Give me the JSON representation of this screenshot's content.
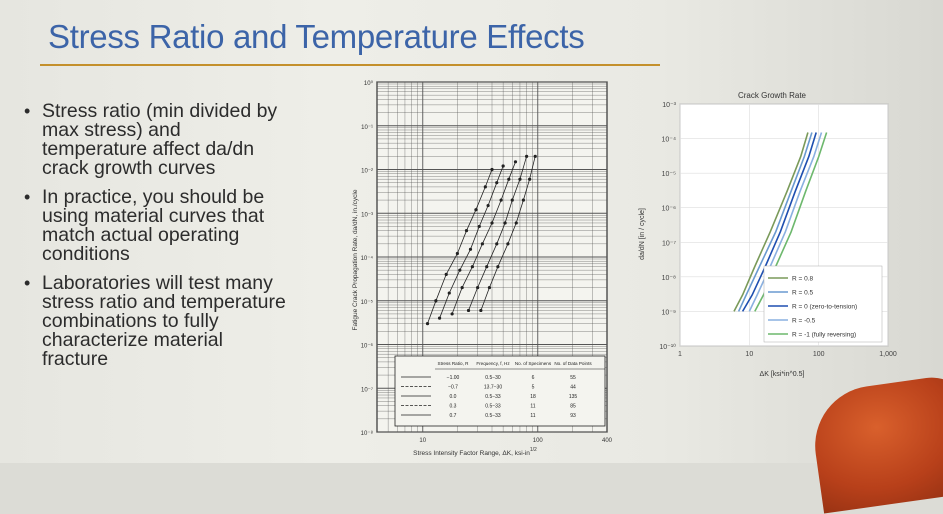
{
  "slide": {
    "title": "Stress Ratio and Temperature Effects",
    "bullets": [
      {
        "lines": [
          "Stress ratio (min divided by",
          "max stress) and",
          "temperature affect da/dn",
          "crack growth curves"
        ]
      },
      {
        "lines": [
          "In practice, you should be",
          "using material curves that",
          "match actual operating",
          "conditions"
        ]
      },
      {
        "lines": [
          "Laboratories will test many",
          "stress ratio and temperature",
          "combinations to fully",
          "characterize material",
          "fracture"
        ]
      }
    ],
    "bullet_glyph": "•",
    "colors": {
      "title": "#3c64a8",
      "rule": "#c4902c",
      "text": "#2c2c2c"
    }
  },
  "chart_data": [
    {
      "type": "scatter",
      "title": "",
      "xlabel": "Stress Intensity Factor Range, ΔK, ksi-in",
      "xlabel_superscript": "1/2",
      "ylabel": "Fatigue Crack Propagation Rate, da/dN, in./cycle",
      "yscale": "log",
      "xscale": "log",
      "ylim": [
        1e-08,
        1
      ],
      "xlim": [
        4,
        400
      ],
      "y_tick_labels": [
        "10⁰",
        "10⁻¹",
        "10⁻²",
        "10⁻³",
        "10⁻⁴",
        "10⁻⁵",
        "10⁻⁶",
        "10⁻⁷",
        "10⁻⁸"
      ],
      "x_tick_labels": [
        "10",
        "100",
        "400"
      ],
      "table": {
        "headers": [
          "Stress Ratio, R",
          "Frequency, f, Hz",
          "No. of Specimens",
          "No. of Data Points"
        ],
        "rows": [
          [
            "−1.00",
            "0.5−30",
            "6",
            "55"
          ],
          [
            "−0.7",
            "13.7−30",
            "5",
            "44"
          ],
          [
            "0.0",
            "0.5−33",
            "18",
            "135"
          ],
          [
            "0.3",
            "0.5−33",
            "11",
            "85"
          ],
          [
            "0.7",
            "0.5−33",
            "11",
            "93"
          ]
        ]
      },
      "series": [
        {
          "points": [
            [
              32,
              6e-06
            ],
            [
              38,
              2e-05
            ],
            [
              45,
              6e-05
            ],
            [
              55,
              0.0002
            ],
            [
              65,
              0.0006
            ],
            [
              75,
              0.002
            ],
            [
              85,
              0.006
            ],
            [
              95,
              0.02
            ]
          ]
        },
        {
          "points": [
            [
              25,
              6e-06
            ],
            [
              30,
              2e-05
            ],
            [
              36,
              6e-05
            ],
            [
              44,
              0.0002
            ],
            [
              52,
              0.0006
            ],
            [
              60,
              0.002
            ],
            [
              70,
              0.006
            ],
            [
              80,
              0.02
            ]
          ]
        },
        {
          "points": [
            [
              18,
              5e-06
            ],
            [
              22,
              2e-05
            ],
            [
              27,
              6e-05
            ],
            [
              33,
              0.0002
            ],
            [
              40,
              0.0006
            ],
            [
              48,
              0.002
            ],
            [
              56,
              0.006
            ],
            [
              64,
              0.015
            ]
          ]
        },
        {
          "points": [
            [
              14,
              4e-06
            ],
            [
              17,
              1.5e-05
            ],
            [
              21,
              5e-05
            ],
            [
              26,
              0.00015
            ],
            [
              31,
              0.0005
            ],
            [
              37,
              0.0015
            ],
            [
              44,
              0.005
            ],
            [
              50,
              0.012
            ]
          ]
        },
        {
          "points": [
            [
              11,
              3e-06
            ],
            [
              13,
              1e-05
            ],
            [
              16,
              4e-05
            ],
            [
              20,
              0.00012
            ],
            [
              24,
              0.0004
            ],
            [
              29,
              0.0012
            ],
            [
              35,
              0.004
            ],
            [
              40,
              0.01
            ]
          ]
        }
      ]
    },
    {
      "type": "line",
      "title": "Crack Growth Rate",
      "xlabel": "ΔK [ksi*in^0.5]",
      "ylabel": "da/dN [in / cycle]",
      "xscale": "log",
      "yscale": "log",
      "xlim": [
        1,
        1000
      ],
      "ylim": [
        1e-10,
        0.001
      ],
      "x_tick_labels": [
        "1",
        "10",
        "100",
        "1,000"
      ],
      "y_tick_labels": [
        "10⁻³",
        "10⁻⁴",
        "10⁻⁵",
        "10⁻⁶",
        "10⁻⁷",
        "10⁻⁸",
        "10⁻⁹",
        "10⁻¹⁰"
      ],
      "legend_position": "bottom-right",
      "series": [
        {
          "name": "R = 0.8",
          "color": "#7a9a5a",
          "x": [
            6,
            8,
            12,
            20,
            35,
            55,
            70
          ],
          "y": [
            1e-09,
            3e-09,
            2e-08,
            2e-07,
            3e-06,
            3e-05,
            0.00015
          ]
        },
        {
          "name": "R = 0.5",
          "color": "#6a9ad0",
          "x": [
            7,
            9,
            14,
            24,
            40,
            62,
            80
          ],
          "y": [
            1e-09,
            3e-09,
            2e-08,
            2e-07,
            3e-06,
            3e-05,
            0.00015
          ]
        },
        {
          "name": "R = 0 (zero-to-tension)",
          "color": "#1e4fb0",
          "x": [
            8,
            11,
            17,
            28,
            46,
            72,
            92
          ],
          "y": [
            1e-09,
            3e-09,
            2e-08,
            2e-07,
            3e-06,
            3e-05,
            0.00015
          ]
        },
        {
          "name": "R = -0.5",
          "color": "#8ab0e0",
          "x": [
            10,
            13,
            20,
            33,
            54,
            85,
            110
          ],
          "y": [
            1e-09,
            3e-09,
            2e-08,
            2e-07,
            3e-06,
            3e-05,
            0.00015
          ]
        },
        {
          "name": "R = -1 (fully reversing)",
          "color": "#6db86d",
          "x": [
            12,
            16,
            24,
            40,
            65,
            100,
            130
          ],
          "y": [
            1e-09,
            3e-09,
            2e-08,
            2e-07,
            3e-06,
            3e-05,
            0.00015
          ]
        }
      ]
    }
  ]
}
